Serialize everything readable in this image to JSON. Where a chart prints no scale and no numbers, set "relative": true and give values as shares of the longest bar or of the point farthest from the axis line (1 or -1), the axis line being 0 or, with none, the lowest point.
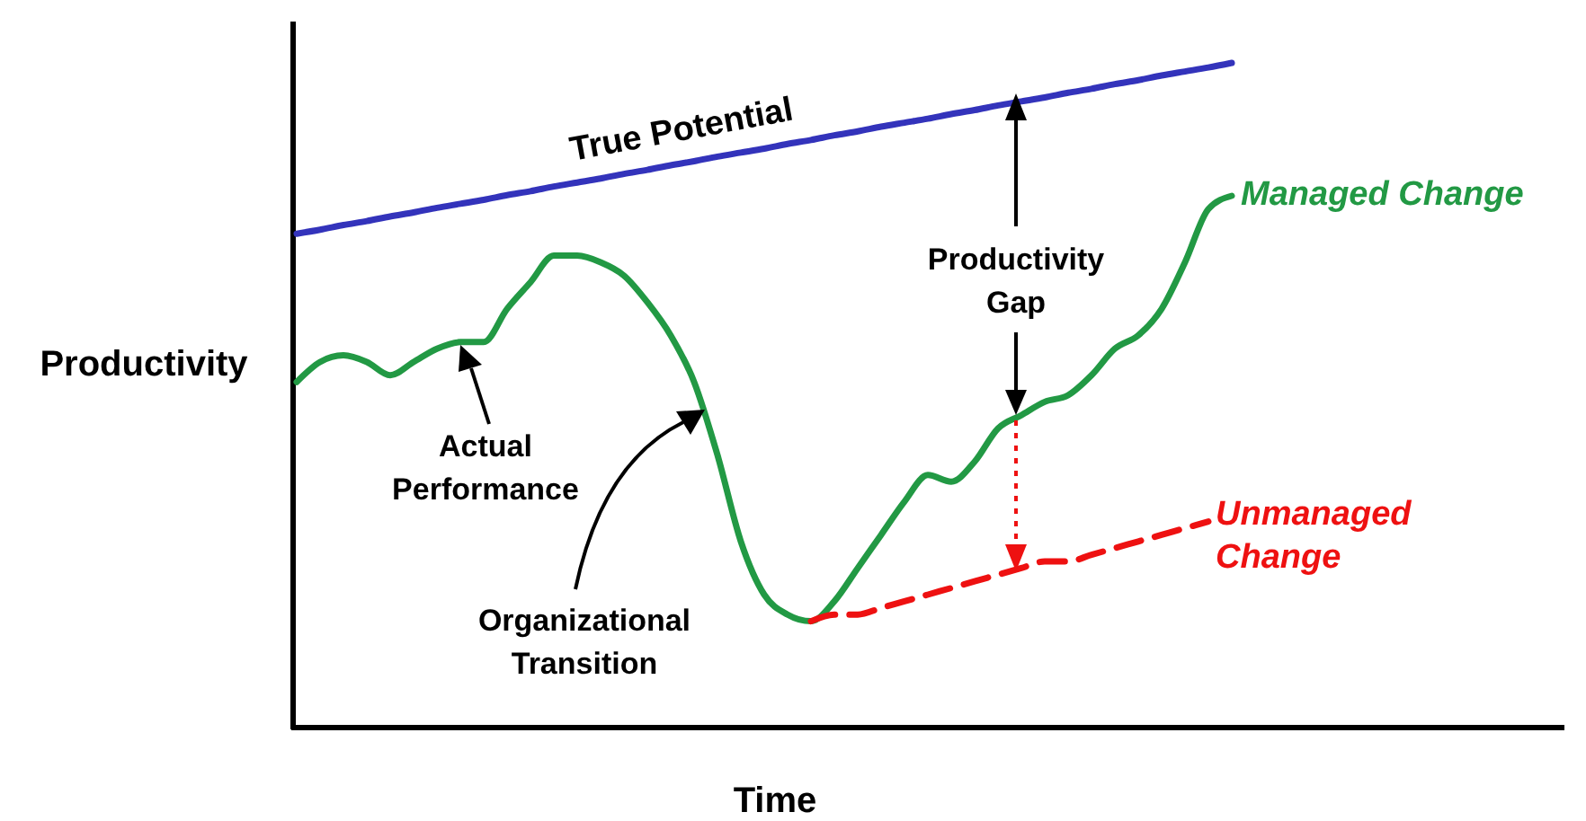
{
  "chart_data": {
    "type": "line",
    "relative": true,
    "xlabel": "Time",
    "ylabel": "Productivity",
    "legend": false,
    "categories": [
      null,
      null,
      null,
      null,
      null,
      null,
      null,
      null,
      null,
      null,
      null,
      null,
      null,
      null,
      null,
      null,
      null,
      null,
      null,
      null,
      null,
      null,
      null,
      null,
      null,
      null,
      null,
      null,
      null,
      null,
      null,
      null,
      null,
      null,
      null,
      null,
      null,
      null,
      null,
      null,
      null
    ],
    "series": [
      {
        "name": "True Potential",
        "color": "#3333bb",
        "line_style": "solid",
        "values": [
          0.743,
          0.749,
          0.756,
          0.762,
          0.769,
          0.775,
          0.782,
          0.788,
          0.794,
          0.801,
          0.807,
          0.814,
          0.82,
          0.826,
          0.833,
          0.839,
          0.846,
          0.852,
          0.859,
          0.865,
          0.871,
          0.878,
          0.884,
          0.891,
          0.897,
          0.904,
          0.91,
          0.916,
          0.923,
          0.929,
          0.936,
          0.942,
          0.948,
          0.955,
          0.961,
          0.968,
          0.974,
          0.981,
          0.987,
          0.993,
          1.0
        ]
      },
      {
        "name": "Managed Change",
        "color": "#229944",
        "line_style": "solid",
        "values": [
          0.52,
          0.55,
          0.56,
          0.55,
          0.53,
          0.55,
          0.57,
          0.58,
          0.58,
          0.63,
          0.67,
          0.71,
          0.71,
          0.7,
          0.68,
          0.64,
          0.59,
          0.52,
          0.41,
          0.28,
          0.2,
          0.17,
          0.16,
          0.19,
          0.24,
          0.29,
          0.34,
          0.38,
          0.37,
          0.4,
          0.45,
          0.47,
          0.49,
          0.5,
          0.53,
          0.57,
          0.59,
          0.63,
          0.7,
          0.78,
          0.8
        ]
      },
      {
        "name": "Unmanaged Change",
        "color": "#ee1111",
        "line_style": "dashed",
        "values": [
          null,
          null,
          null,
          null,
          null,
          null,
          null,
          null,
          null,
          null,
          null,
          null,
          null,
          null,
          null,
          null,
          null,
          null,
          null,
          null,
          null,
          null,
          0.16,
          0.17,
          0.17,
          0.18,
          0.19,
          0.2,
          0.21,
          0.22,
          0.23,
          0.24,
          0.25,
          0.25,
          0.26,
          0.27,
          0.28,
          0.29,
          0.3,
          0.31,
          null
        ]
      }
    ],
    "annotations": [
      "Actual Performance",
      "Organizational Transition",
      "Productivity Gap"
    ]
  }
}
